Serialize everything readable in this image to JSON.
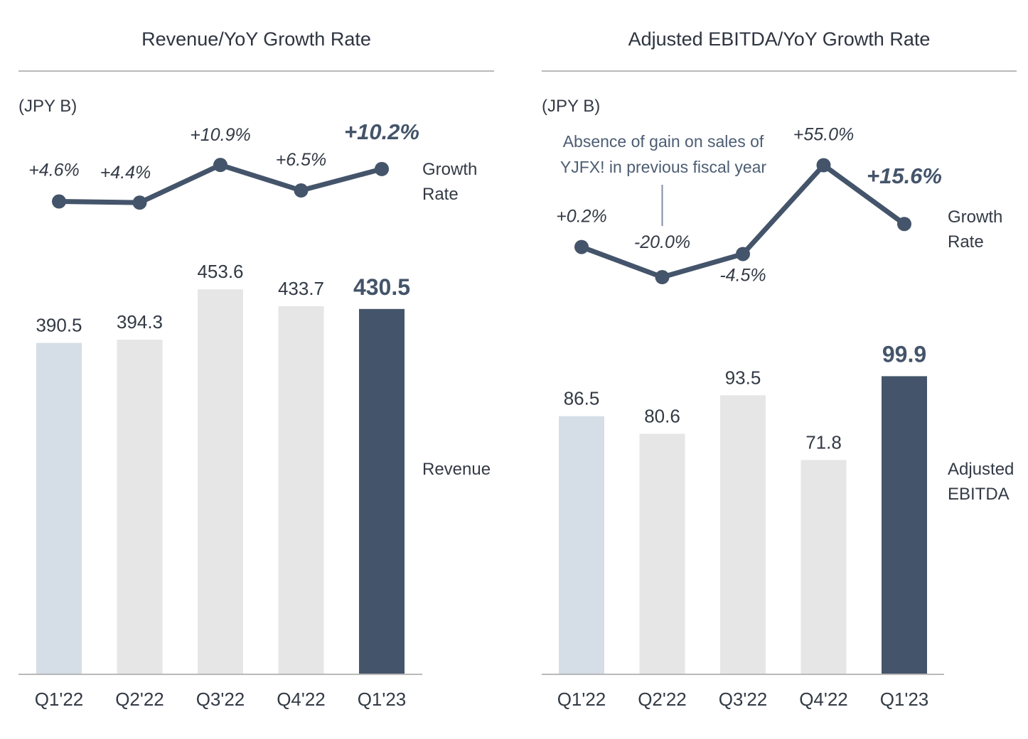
{
  "colors": {
    "dark": "#44546a",
    "light_blue": "#d5dde6",
    "light_gray": "#e6e6e6",
    "axis": "#b9b9b9",
    "text": "#333a45"
  },
  "charts": [
    {
      "title": "Revenue/YoY Growth Rate",
      "unit": "(JPY B)",
      "line_legend": [
        "Growth",
        "Rate"
      ],
      "bar_legend": [
        "Revenue"
      ],
      "note": []
    },
    {
      "title": "Adjusted EBITDA/YoY Growth Rate",
      "unit": "(JPY B)",
      "line_legend": [
        "Growth",
        "Rate"
      ],
      "bar_legend": [
        "Adjusted",
        "EBITDA"
      ],
      "note": [
        "Absence of gain on sales of",
        "YJFX! in previous fiscal year"
      ]
    }
  ],
  "chart_data": [
    {
      "type": "bar",
      "title": "Revenue/YoY Growth Rate",
      "categories": [
        "Q1'22",
        "Q2'22",
        "Q3'22",
        "Q4'22",
        "Q1'23"
      ],
      "series": [
        {
          "name": "Revenue",
          "values": [
            390.5,
            394.3,
            453.6,
            433.7,
            430.5
          ],
          "labels": [
            "390.5",
            "394.3",
            "453.6",
            "433.7",
            "430.5"
          ],
          "bar_colors": [
            "#d5dde6",
            "#e6e6e6",
            "#e6e6e6",
            "#e6e6e6",
            "#44546a"
          ]
        },
        {
          "name": "Growth Rate",
          "type": "line",
          "values": [
            4.6,
            4.4,
            10.9,
            6.5,
            10.2
          ],
          "labels": [
            "+4.6%",
            "+4.4%",
            "+10.9%",
            "+6.5%",
            "+10.2%"
          ]
        }
      ],
      "highlight_index": 4,
      "ylim": [
        0,
        460
      ]
    },
    {
      "type": "bar",
      "title": "Adjusted EBITDA/YoY Growth Rate",
      "categories": [
        "Q1'22",
        "Q2'22",
        "Q3'22",
        "Q4'22",
        "Q1'23"
      ],
      "series": [
        {
          "name": "Adjusted EBITDA",
          "values": [
            86.5,
            80.6,
            93.5,
            71.8,
            99.9
          ],
          "labels": [
            "86.5",
            "80.6",
            "93.5",
            "71.8",
            "99.9"
          ],
          "bar_colors": [
            "#d5dde6",
            "#e6e6e6",
            "#e6e6e6",
            "#e6e6e6",
            "#44546a"
          ]
        },
        {
          "name": "Growth Rate",
          "type": "line",
          "values": [
            0.2,
            -20.0,
            -4.5,
            55.0,
            15.6
          ],
          "labels": [
            "+0.2%",
            "-20.0%",
            "-4.5%",
            "+55.0%",
            "+15.6%"
          ]
        }
      ],
      "highlight_index": 4,
      "ylim": [
        0,
        102
      ]
    }
  ]
}
